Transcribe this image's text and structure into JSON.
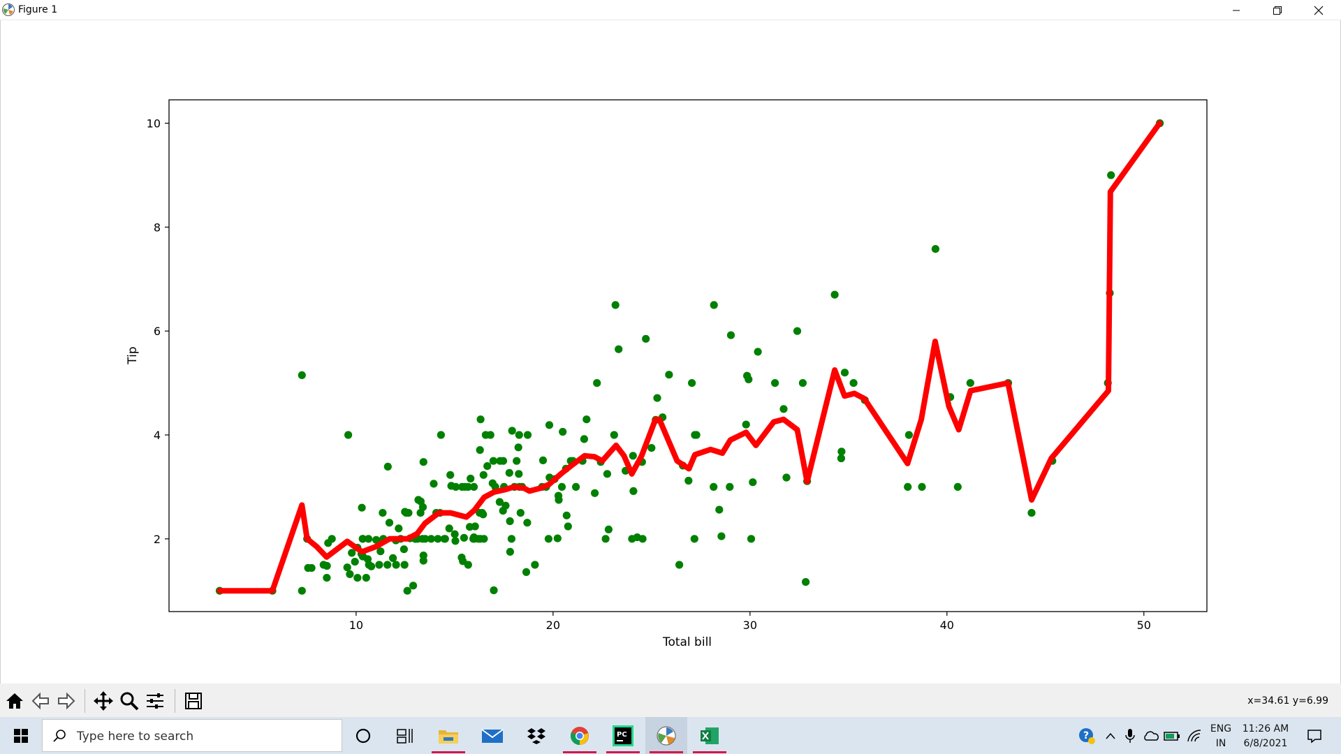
{
  "window": {
    "title": "Figure 1"
  },
  "chart_data": {
    "type": "scatter",
    "xlabel": "Total bill",
    "ylabel": "Tip",
    "xlim": [
      0.5,
      53.2
    ],
    "ylim": [
      0.6,
      10.45
    ],
    "xticks": [
      10,
      20,
      30,
      40,
      50
    ],
    "yticks": [
      2,
      4,
      6,
      8,
      10
    ],
    "grid": false,
    "colors": {
      "scatter": "#008000",
      "line": "#ff0000"
    },
    "series": [
      {
        "kind": "scatter",
        "points": [
          [
            3.07,
            1.0
          ],
          [
            5.75,
            1.0
          ],
          [
            7.25,
            1.0
          ],
          [
            7.25,
            5.15
          ],
          [
            7.51,
            2.0
          ],
          [
            7.56,
            1.44
          ],
          [
            7.74,
            1.44
          ],
          [
            8.35,
            1.5
          ],
          [
            8.51,
            1.25
          ],
          [
            8.52,
            1.48
          ],
          [
            8.58,
            1.92
          ],
          [
            8.77,
            2.0
          ],
          [
            9.55,
            1.45
          ],
          [
            9.6,
            4.0
          ],
          [
            9.68,
            1.32
          ],
          [
            9.78,
            1.73
          ],
          [
            9.94,
            1.56
          ],
          [
            10.07,
            1.25
          ],
          [
            10.07,
            1.83
          ],
          [
            10.27,
            1.71
          ],
          [
            10.29,
            2.6
          ],
          [
            10.33,
            1.67
          ],
          [
            10.33,
            2.0
          ],
          [
            10.34,
            1.66
          ],
          [
            10.34,
            2.0
          ],
          [
            10.51,
            1.25
          ],
          [
            10.59,
            1.61
          ],
          [
            10.63,
            2.0
          ],
          [
            10.65,
            1.5
          ],
          [
            10.77,
            1.47
          ],
          [
            11.02,
            1.98
          ],
          [
            11.17,
            1.5
          ],
          [
            11.24,
            1.76
          ],
          [
            11.35,
            2.5
          ],
          [
            11.38,
            2.0
          ],
          [
            11.59,
            1.5
          ],
          [
            11.61,
            3.39
          ],
          [
            11.69,
            2.31
          ],
          [
            11.87,
            1.63
          ],
          [
            12.02,
            1.97
          ],
          [
            12.03,
            1.5
          ],
          [
            12.16,
            2.2
          ],
          [
            12.26,
            2.0
          ],
          [
            12.43,
            1.8
          ],
          [
            12.46,
            1.5
          ],
          [
            12.48,
            2.52
          ],
          [
            12.54,
            2.5
          ],
          [
            12.6,
            1.0
          ],
          [
            12.66,
            2.5
          ],
          [
            12.74,
            2.01
          ],
          [
            12.9,
            1.1
          ],
          [
            13.0,
            2.0
          ],
          [
            13.03,
            2.0
          ],
          [
            13.13,
            2.0
          ],
          [
            13.16,
            2.75
          ],
          [
            13.27,
            2.5
          ],
          [
            13.28,
            2.72
          ],
          [
            13.37,
            2.0
          ],
          [
            13.39,
            2.61
          ],
          [
            13.42,
            1.58
          ],
          [
            13.42,
            1.68
          ],
          [
            13.42,
            3.48
          ],
          [
            13.51,
            2.0
          ],
          [
            13.81,
            2.0
          ],
          [
            13.94,
            3.06
          ],
          [
            14.07,
            2.5
          ],
          [
            14.15,
            2.0
          ],
          [
            14.26,
            2.5
          ],
          [
            14.31,
            4.0
          ],
          [
            14.48,
            2.0
          ],
          [
            14.52,
            2.0
          ],
          [
            14.73,
            2.2
          ],
          [
            14.78,
            3.23
          ],
          [
            14.83,
            3.02
          ],
          [
            15.01,
            2.09
          ],
          [
            15.04,
            1.96
          ],
          [
            15.06,
            3.0
          ],
          [
            15.36,
            1.64
          ],
          [
            15.38,
            3.0
          ],
          [
            15.42,
            1.57
          ],
          [
            15.48,
            2.02
          ],
          [
            15.53,
            3.0
          ],
          [
            15.69,
            1.5
          ],
          [
            15.69,
            3.0
          ],
          [
            15.77,
            2.23
          ],
          [
            15.81,
            3.16
          ],
          [
            15.95,
            2.0
          ],
          [
            15.98,
            2.03
          ],
          [
            15.98,
            3.0
          ],
          [
            16.0,
            2.0
          ],
          [
            16.04,
            2.24
          ],
          [
            16.21,
            2.0
          ],
          [
            16.27,
            2.5
          ],
          [
            16.29,
            3.71
          ],
          [
            16.31,
            2.0
          ],
          [
            16.32,
            4.3
          ],
          [
            16.4,
            2.5
          ],
          [
            16.45,
            2.47
          ],
          [
            16.47,
            3.23
          ],
          [
            16.49,
            2.0
          ],
          [
            16.58,
            4.0
          ],
          [
            16.66,
            3.4
          ],
          [
            16.82,
            4.0
          ],
          [
            16.93,
            3.07
          ],
          [
            16.97,
            3.5
          ],
          [
            16.99,
            1.01
          ],
          [
            17.07,
            3.0
          ],
          [
            17.29,
            2.71
          ],
          [
            17.31,
            3.5
          ],
          [
            17.46,
            2.54
          ],
          [
            17.47,
            3.5
          ],
          [
            17.51,
            3.0
          ],
          [
            17.59,
            2.64
          ],
          [
            17.78,
            3.27
          ],
          [
            17.81,
            2.34
          ],
          [
            17.82,
            1.75
          ],
          [
            17.89,
            2.0
          ],
          [
            17.92,
            4.08
          ],
          [
            18.04,
            3.0
          ],
          [
            18.15,
            3.5
          ],
          [
            18.24,
            3.76
          ],
          [
            18.26,
            3.25
          ],
          [
            18.28,
            4.0
          ],
          [
            18.29,
            3.0
          ],
          [
            18.35,
            2.5
          ],
          [
            18.43,
            3.0
          ],
          [
            18.64,
            1.36
          ],
          [
            18.69,
            2.31
          ],
          [
            18.71,
            4.0
          ],
          [
            19.08,
            1.5
          ],
          [
            19.44,
            3.0
          ],
          [
            19.49,
            3.51
          ],
          [
            19.65,
            3.0
          ],
          [
            19.77,
            2.0
          ],
          [
            19.81,
            4.19
          ],
          [
            19.82,
            3.18
          ],
          [
            20.08,
            3.15
          ],
          [
            20.23,
            2.01
          ],
          [
            20.27,
            2.83
          ],
          [
            20.29,
            2.75
          ],
          [
            20.45,
            3.0
          ],
          [
            20.49,
            4.06
          ],
          [
            20.65,
            3.35
          ],
          [
            20.69,
            2.45
          ],
          [
            20.76,
            2.24
          ],
          [
            20.9,
            3.5
          ],
          [
            21.01,
            3.5
          ],
          [
            21.16,
            3.0
          ],
          [
            21.5,
            3.5
          ],
          [
            21.58,
            3.92
          ],
          [
            21.7,
            4.3
          ],
          [
            22.12,
            2.88
          ],
          [
            22.23,
            5.0
          ],
          [
            22.42,
            3.48
          ],
          [
            22.67,
            2.0
          ],
          [
            22.75,
            3.25
          ],
          [
            22.82,
            2.18
          ],
          [
            23.1,
            4.0
          ],
          [
            23.17,
            6.5
          ],
          [
            23.33,
            5.65
          ],
          [
            23.68,
            3.31
          ],
          [
            24.01,
            2.0
          ],
          [
            24.06,
            3.6
          ],
          [
            24.08,
            2.92
          ],
          [
            24.27,
            2.03
          ],
          [
            24.52,
            3.48
          ],
          [
            24.55,
            2.0
          ],
          [
            24.71,
            5.85
          ],
          [
            25.0,
            3.75
          ],
          [
            25.21,
            4.29
          ],
          [
            25.29,
            4.71
          ],
          [
            25.56,
            4.34
          ],
          [
            25.89,
            5.16
          ],
          [
            26.41,
            1.5
          ],
          [
            26.59,
            3.41
          ],
          [
            26.88,
            3.12
          ],
          [
            27.05,
            5.0
          ],
          [
            27.18,
            2.0
          ],
          [
            27.2,
            4.0
          ],
          [
            27.28,
            4.0
          ],
          [
            28.15,
            3.0
          ],
          [
            28.17,
            6.5
          ],
          [
            28.44,
            2.56
          ],
          [
            28.55,
            2.05
          ],
          [
            28.97,
            3.0
          ],
          [
            29.03,
            5.92
          ],
          [
            29.8,
            4.2
          ],
          [
            29.85,
            5.14
          ],
          [
            29.93,
            5.07
          ],
          [
            30.06,
            2.0
          ],
          [
            30.14,
            3.09
          ],
          [
            30.4,
            5.6
          ],
          [
            31.27,
            5.0
          ],
          [
            31.71,
            4.5
          ],
          [
            31.85,
            3.18
          ],
          [
            32.4,
            6.0
          ],
          [
            32.68,
            5.0
          ],
          [
            32.83,
            1.17
          ],
          [
            32.9,
            3.11
          ],
          [
            34.3,
            6.7
          ],
          [
            34.63,
            3.55
          ],
          [
            34.65,
            3.68
          ],
          [
            34.81,
            5.2
          ],
          [
            35.26,
            5.0
          ],
          [
            35.83,
            4.67
          ],
          [
            38.01,
            3.0
          ],
          [
            38.07,
            4.0
          ],
          [
            38.73,
            3.0
          ],
          [
            39.42,
            7.58
          ],
          [
            40.17,
            4.73
          ],
          [
            40.55,
            3.0
          ],
          [
            41.19,
            5.0
          ],
          [
            43.11,
            5.0
          ],
          [
            44.3,
            2.5
          ],
          [
            45.35,
            3.5
          ],
          [
            48.17,
            5.0
          ],
          [
            48.27,
            6.73
          ],
          [
            48.33,
            9.0
          ],
          [
            50.81,
            10.0
          ]
        ]
      },
      {
        "kind": "line",
        "points": [
          [
            3.07,
            1.0
          ],
          [
            5.75,
            1.0
          ],
          [
            7.25,
            2.65
          ],
          [
            7.51,
            2.0
          ],
          [
            8.0,
            1.85
          ],
          [
            8.5,
            1.65
          ],
          [
            9.55,
            1.95
          ],
          [
            10.3,
            1.75
          ],
          [
            11.0,
            1.85
          ],
          [
            11.7,
            2.0
          ],
          [
            12.6,
            2.0
          ],
          [
            13.1,
            2.1
          ],
          [
            13.5,
            2.3
          ],
          [
            14.2,
            2.5
          ],
          [
            14.8,
            2.5
          ],
          [
            15.6,
            2.42
          ],
          [
            16.0,
            2.55
          ],
          [
            16.5,
            2.8
          ],
          [
            17.0,
            2.9
          ],
          [
            17.6,
            2.95
          ],
          [
            18.0,
            3.0
          ],
          [
            18.5,
            2.98
          ],
          [
            18.8,
            2.92
          ],
          [
            19.4,
            2.98
          ],
          [
            19.8,
            3.05
          ],
          [
            20.4,
            3.25
          ],
          [
            20.9,
            3.4
          ],
          [
            21.6,
            3.6
          ],
          [
            22.1,
            3.58
          ],
          [
            22.5,
            3.5
          ],
          [
            23.2,
            3.8
          ],
          [
            23.6,
            3.6
          ],
          [
            24.0,
            3.25
          ],
          [
            24.5,
            3.6
          ],
          [
            25.2,
            4.3
          ],
          [
            25.4,
            4.3
          ],
          [
            26.3,
            3.5
          ],
          [
            26.9,
            3.35
          ],
          [
            27.2,
            3.62
          ],
          [
            28.0,
            3.72
          ],
          [
            28.6,
            3.65
          ],
          [
            29.0,
            3.9
          ],
          [
            29.8,
            4.05
          ],
          [
            30.3,
            3.8
          ],
          [
            31.2,
            4.25
          ],
          [
            31.7,
            4.3
          ],
          [
            32.4,
            4.1
          ],
          [
            32.9,
            3.1
          ],
          [
            34.3,
            5.25
          ],
          [
            34.8,
            4.75
          ],
          [
            35.3,
            4.8
          ],
          [
            35.8,
            4.7
          ],
          [
            38.0,
            3.45
          ],
          [
            38.7,
            4.3
          ],
          [
            39.4,
            5.8
          ],
          [
            40.1,
            4.55
          ],
          [
            40.6,
            4.1
          ],
          [
            41.2,
            4.85
          ],
          [
            43.1,
            5.0
          ],
          [
            44.3,
            2.75
          ],
          [
            45.3,
            3.55
          ],
          [
            48.2,
            4.85
          ],
          [
            48.3,
            8.68
          ],
          [
            50.8,
            10.0
          ]
        ]
      }
    ]
  },
  "toolbar": {
    "buttons": [
      "home-icon",
      "back-icon",
      "forward-icon",
      "pan-icon",
      "zoom-icon",
      "configure-icon",
      "save-icon"
    ],
    "coords": "x=34.61 y=6.99"
  },
  "taskbar": {
    "search_placeholder": "Type here to search",
    "lang_line1": "ENG",
    "lang_line2": "IN",
    "time": "11:26 AM",
    "date": "6/8/2021",
    "apps": [
      "cortana-icon",
      "task-view-icon",
      "file-explorer-icon",
      "mail-icon",
      "dropbox-icon",
      "chrome-icon",
      "pycharm-icon",
      "matplotlib-icon",
      "excel-icon"
    ]
  }
}
